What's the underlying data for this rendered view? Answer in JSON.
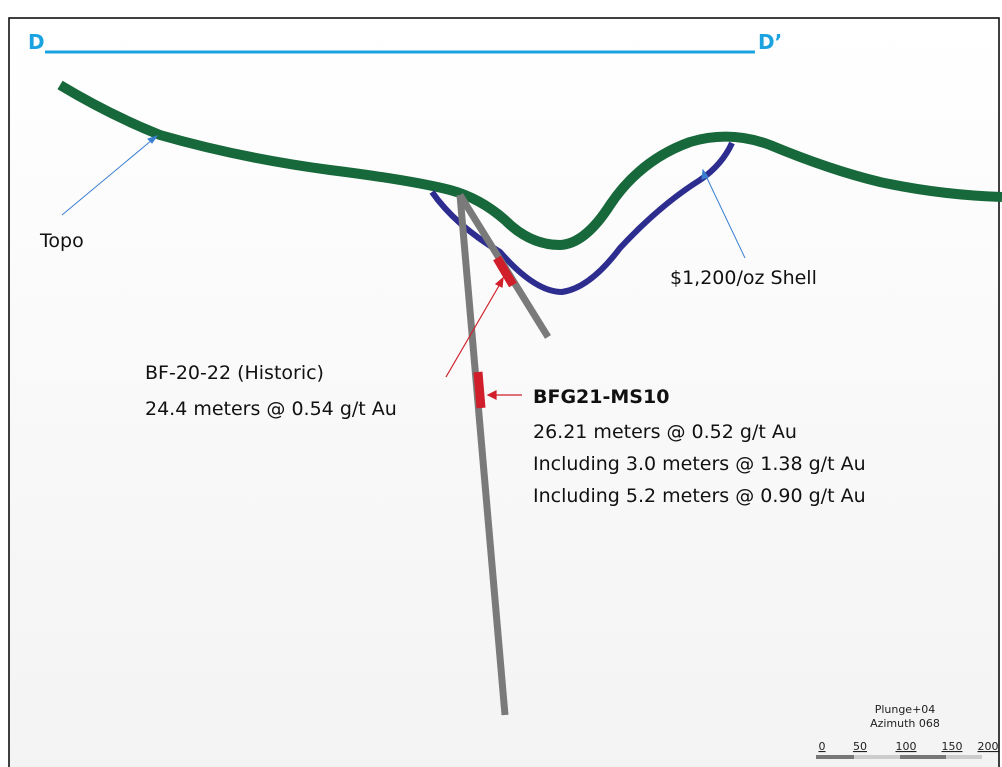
{
  "section": {
    "start": "D",
    "end": "D’"
  },
  "labels": {
    "topo": "Topo",
    "shell": "$1,200/oz Shell"
  },
  "historic": {
    "name": "BF-20-22 (Historic)",
    "lines": [
      "24.4 meters @ 0.54 g/t Au"
    ]
  },
  "new_hole": {
    "name": "BFG21-MS10",
    "lines": [
      "26.21 meters @ 0.52 g/t Au",
      "Including 3.0 meters @ 1.38 g/t Au",
      "Including 5.2 meters @ 0.90 g/t Au"
    ]
  },
  "scale": {
    "plunge": "Plunge+04",
    "azimuth": "Azimuth 068",
    "ticks": [
      "0",
      "50",
      "100",
      "150",
      "200"
    ]
  }
}
